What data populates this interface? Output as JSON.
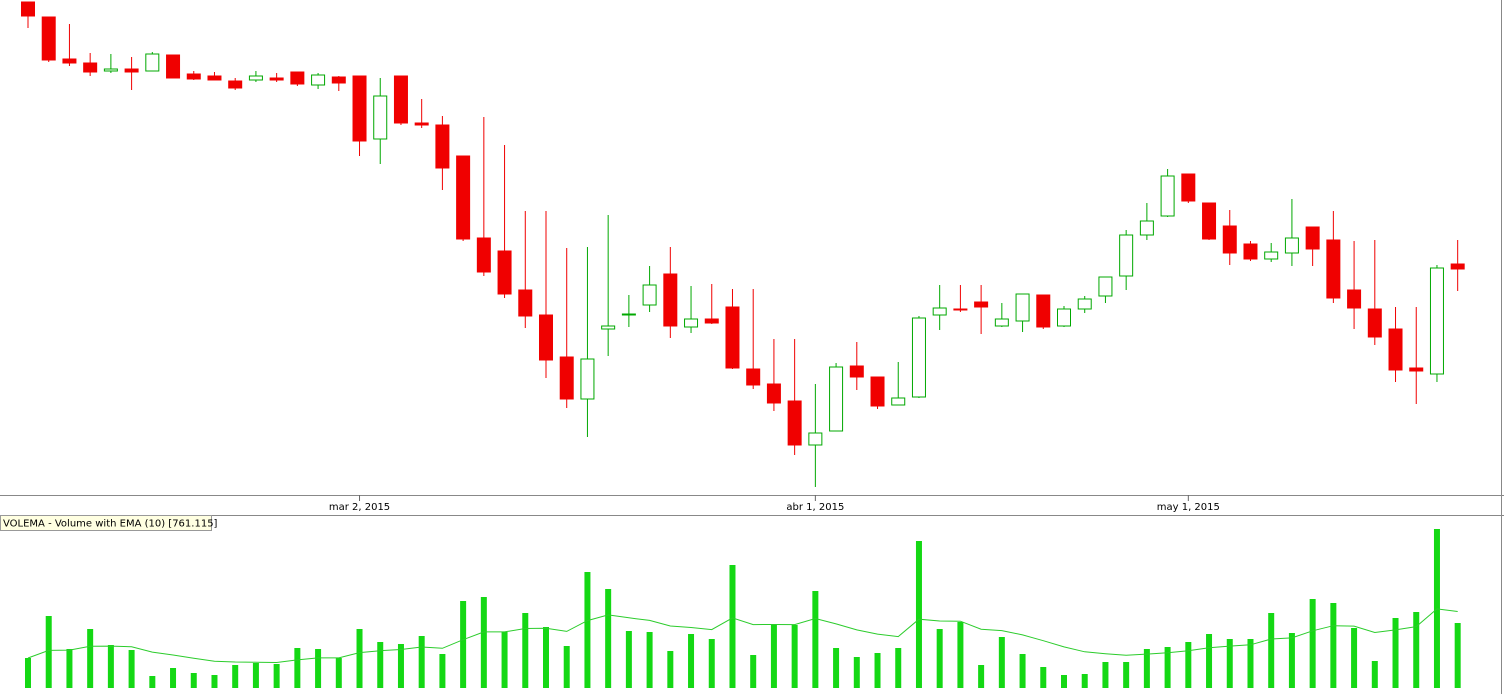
{
  "chart_data": [
    {
      "type": "candlestick",
      "categories": [
        null,
        null,
        null,
        null,
        null,
        null,
        null,
        null,
        null,
        null,
        null,
        null,
        null,
        null,
        null,
        null,
        "mar 2, 2015",
        null,
        null,
        null,
        null,
        null,
        null,
        null,
        null,
        null,
        null,
        null,
        null,
        null,
        null,
        null,
        null,
        null,
        null,
        null,
        null,
        null,
        "abr 1, 2015",
        null,
        null,
        null,
        null,
        null,
        null,
        null,
        null,
        null,
        null,
        null,
        null,
        null,
        null,
        null,
        null,
        null,
        "may 1, 2015",
        null,
        null,
        null,
        null,
        null,
        null,
        null,
        null,
        null,
        null,
        null,
        null,
        null
      ],
      "open": [
        493,
        478,
        436,
        432,
        424,
        426,
        424,
        440,
        421,
        419,
        414,
        415,
        417,
        423,
        410,
        418,
        419,
        356,
        419,
        372,
        370,
        339,
        257,
        244,
        205,
        180,
        138,
        96,
        166,
        180,
        190,
        221,
        168,
        176,
        188,
        126,
        111,
        94,
        50,
        64,
        129,
        118,
        90,
        98,
        180,
        186,
        193,
        169,
        174,
        200,
        169,
        186,
        199,
        219,
        260,
        279,
        321,
        292,
        269,
        251,
        236,
        242,
        268,
        255,
        205,
        186,
        166,
        127,
        121,
        231
      ],
      "high": [
        493,
        478,
        471,
        442,
        441,
        438,
        443,
        440,
        424,
        423,
        417,
        424,
        422,
        423,
        422,
        419,
        419,
        417,
        419,
        396,
        379,
        339,
        378,
        350,
        284,
        284,
        247,
        248,
        280,
        200,
        229,
        248,
        209,
        211,
        206,
        206,
        156,
        156,
        111,
        132,
        153,
        118,
        133,
        179,
        210,
        210,
        210,
        192,
        201,
        200,
        189,
        199,
        218,
        265,
        292,
        326,
        321,
        292,
        285,
        254,
        252,
        296,
        268,
        284,
        254,
        255,
        188,
        188,
        230,
        255
      ],
      "low": [
        467,
        433,
        429,
        419,
        422,
        405,
        424,
        417,
        415,
        415,
        405,
        413,
        413,
        409,
        406,
        404,
        339,
        331,
        370,
        367,
        305,
        254,
        219,
        197,
        167,
        117,
        87,
        58,
        139,
        168,
        183,
        157,
        162,
        171,
        126,
        106,
        84,
        40,
        8,
        64,
        105,
        86,
        90,
        97,
        165,
        183,
        161,
        168,
        163,
        166,
        168,
        182,
        192,
        205,
        255,
        278,
        292,
        255,
        230,
        234,
        233,
        229,
        229,
        192,
        166,
        150,
        113,
        91,
        113,
        204
      ],
      "close": [
        479,
        435,
        432,
        423,
        426,
        423,
        441,
        417,
        416,
        415,
        407,
        419,
        415,
        411,
        420,
        412,
        354,
        399,
        372,
        370,
        327,
        256,
        223,
        201,
        179,
        135,
        96,
        136,
        169,
        181,
        210,
        169,
        176,
        172,
        127,
        110,
        92,
        50,
        62,
        128,
        118,
        89,
        97,
        177,
        187,
        185,
        188,
        176,
        201,
        168,
        186,
        196,
        218,
        260,
        274,
        319,
        294,
        256,
        242,
        236,
        243,
        257,
        246,
        197,
        187,
        158,
        125,
        124,
        227,
        226
      ],
      "ylim": [
        0,
        495
      ],
      "up_color": "#00a800",
      "down_color": "#f00000"
    },
    {
      "type": "bar",
      "title": "VOLEMA - Volume with EMA (10) [761.115]",
      "values": [
        30,
        72,
        39,
        59,
        43,
        38,
        12,
        20,
        15,
        13,
        23,
        25,
        24,
        40,
        39,
        30,
        59,
        46,
        44,
        52,
        34,
        87,
        91,
        56,
        75,
        61,
        42,
        116,
        99,
        57,
        56,
        37,
        54,
        49,
        123,
        33,
        64,
        63,
        97,
        40,
        31,
        35,
        40,
        147,
        59,
        66,
        23,
        51,
        34,
        21,
        13,
        14,
        26,
        26,
        39,
        41,
        46,
        54,
        49,
        49,
        75,
        55,
        89,
        85,
        60,
        27,
        70,
        76,
        159,
        65
      ],
      "color": "#14d814",
      "ema": [
        30,
        37.6,
        37.9,
        41.7,
        41.9,
        41.2,
        35.9,
        33.0,
        29.7,
        26.7,
        26.0,
        25.8,
        25.5,
        28.1,
        30.1,
        30.1,
        35.4,
        37.3,
        38.5,
        41.0,
        39.7,
        48.3,
        56.1,
        56.1,
        59.5,
        59.8,
        56.6,
        67.4,
        73.1,
        70.2,
        67.6,
        62.0,
        60.5,
        58.4,
        70.1,
        63.4,
        63.5,
        63.4,
        69.5,
        64.1,
        58.1,
        53.9,
        51.4,
        68.8,
        67.0,
        66.8,
        58.8,
        57.4,
        53.1,
        47.3,
        41.1,
        36.2,
        34.3,
        32.8,
        33.9,
        35.2,
        37.2,
        40.3,
        41.9,
        43.2,
        49.0,
        50.1,
        57.2,
        62.3,
        61.9,
        55.5,
        58.1,
        61.4,
        79.1,
        76.5
      ],
      "ema_color": "#2ccc2c",
      "ylim": [
        0,
        171
      ]
    }
  ]
}
